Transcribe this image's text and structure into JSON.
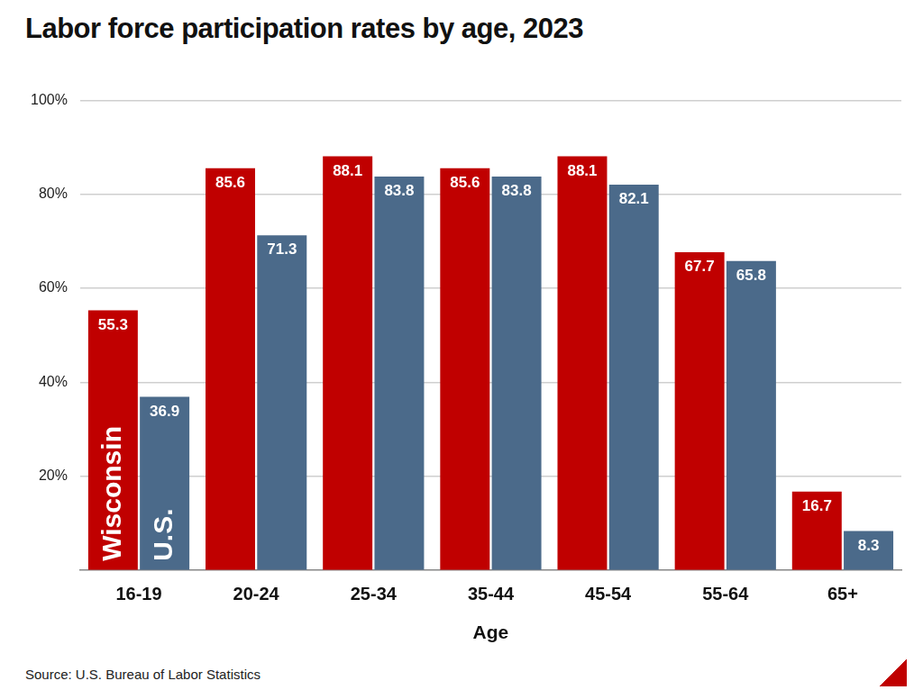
{
  "chart_data": {
    "type": "bar",
    "title": "Labor force participation rates by age, 2023",
    "x_label": "Age",
    "source": "Source: U.S. Bureau of Labor Statistics",
    "categories": [
      "16-19",
      "20-24",
      "25-34",
      "35-44",
      "45-54",
      "55-64",
      "65+"
    ],
    "series": [
      {
        "name": "Wisconsin",
        "color": "#c00000",
        "values": [
          55.3,
          85.6,
          88.1,
          85.6,
          88.1,
          67.7,
          16.7
        ]
      },
      {
        "name": "U.S.",
        "color": "#4b6a8a",
        "values": [
          36.9,
          71.3,
          83.8,
          83.8,
          82.1,
          65.8,
          8.3
        ]
      }
    ],
    "ylim": [
      0,
      100
    ],
    "yticks": [
      {
        "value": 20,
        "label": "20%"
      },
      {
        "value": 40,
        "label": "40%"
      },
      {
        "value": 60,
        "label": "60%"
      },
      {
        "value": 80,
        "label": "80%"
      },
      {
        "value": 100,
        "label": "100%"
      }
    ],
    "grid": true,
    "data_labels": true
  }
}
